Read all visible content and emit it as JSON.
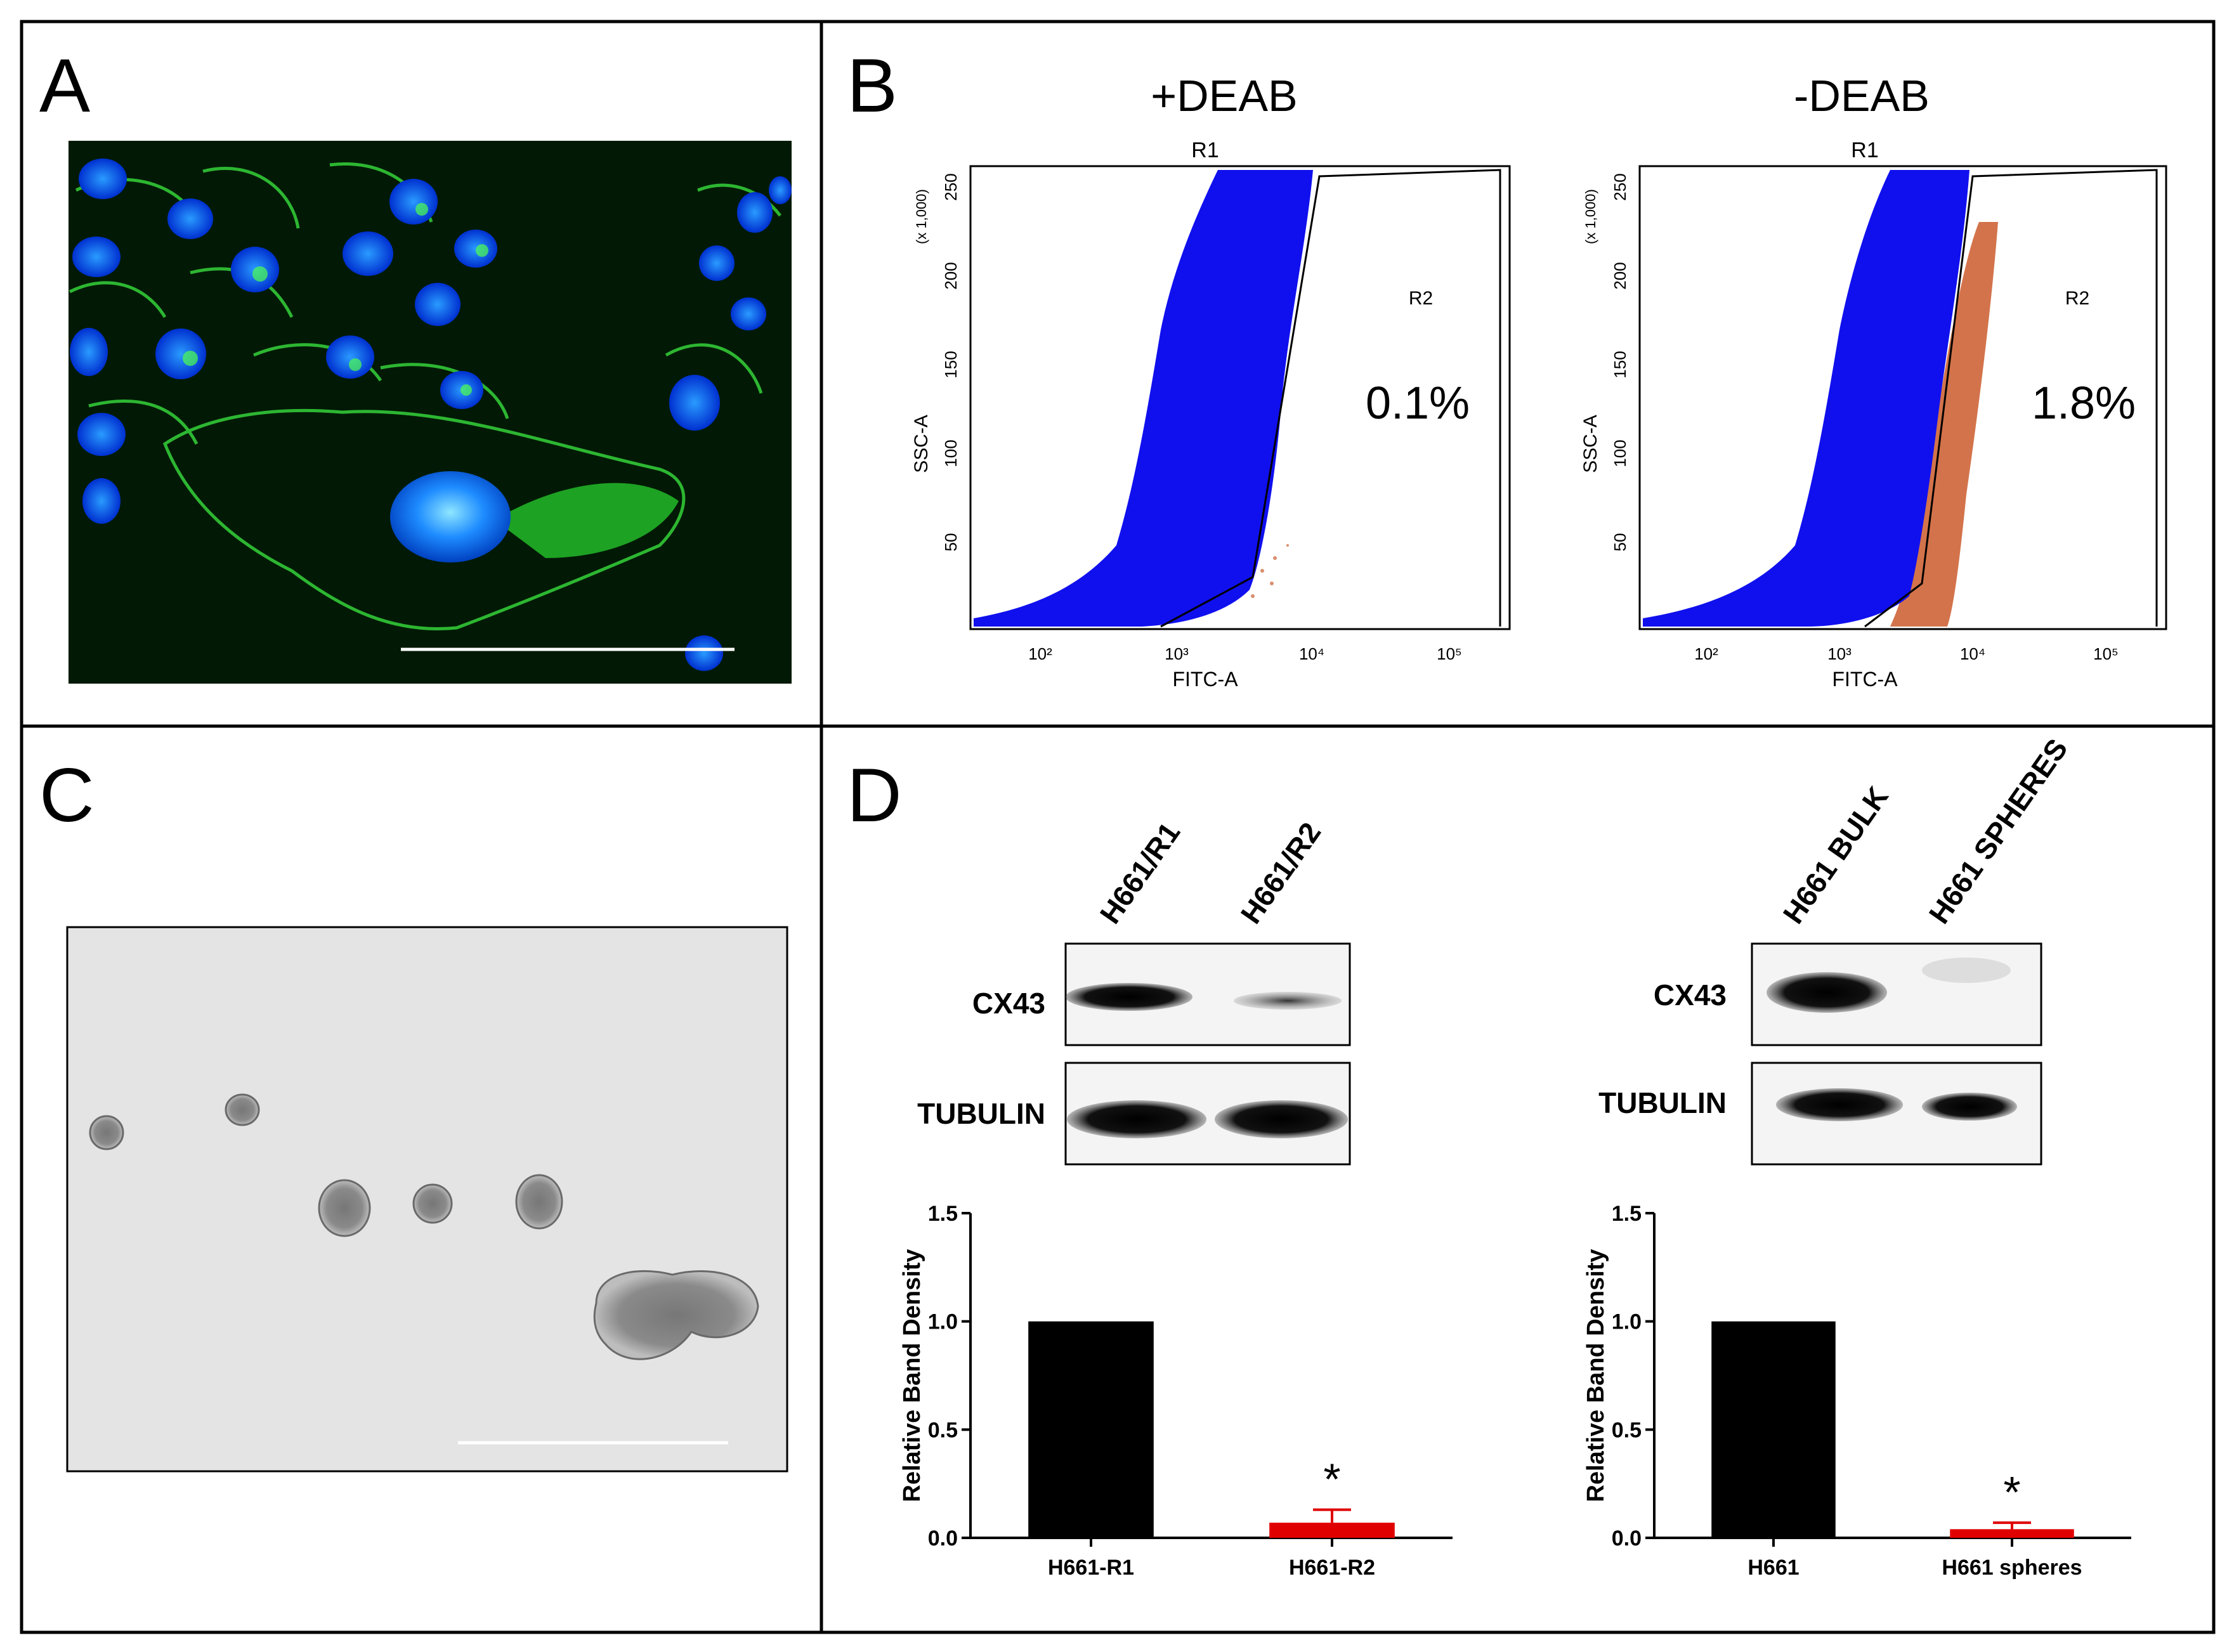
{
  "panels": {
    "a": {
      "letter": "A"
    },
    "b": {
      "letter": "B",
      "plots": [
        {
          "title": "+DEAB",
          "gate1": "R1",
          "gate2": "R2",
          "percent": "0.1%",
          "ylabel": "SSC-A",
          "xlabel": "FITC-A",
          "ymult": "(x 1,000)",
          "yticks": [
            "50",
            "100",
            "150",
            "200",
            "250"
          ],
          "xticks": [
            "10²",
            "10³",
            "10⁴",
            "10⁵"
          ]
        },
        {
          "title": "-DEAB",
          "gate1": "R1",
          "gate2": "R2",
          "percent": "1.8%",
          "ylabel": "SSC-A",
          "xlabel": "FITC-A",
          "ymult": "(x 1,000)",
          "yticks": [
            "50",
            "100",
            "150",
            "200",
            "250"
          ],
          "xticks": [
            "10²",
            "10³",
            "10⁴",
            "10⁵"
          ]
        }
      ]
    },
    "c": {
      "letter": "C"
    },
    "d": {
      "letter": "D",
      "blots": [
        {
          "lanes": [
            "H661/R1",
            "H661/R2"
          ],
          "rows": [
            "CX43",
            "TUBULIN"
          ]
        },
        {
          "lanes": [
            "H661 BULK",
            "H661 SPHERES"
          ],
          "rows": [
            "CX43",
            "TUBULIN"
          ]
        }
      ]
    }
  },
  "chart_data": [
    {
      "type": "bar",
      "categories": [
        "H661-R1",
        "H661-R2"
      ],
      "values": [
        1.0,
        0.07
      ],
      "errors": [
        0,
        0.06
      ],
      "ylabel": "Relative Band Density",
      "ylim": [
        0,
        1.5
      ],
      "yticks": [
        "0.0",
        "0.5",
        "1.0",
        "1.5"
      ],
      "colors": [
        "#000000",
        "#e00000"
      ],
      "annotations": [
        "*"
      ]
    },
    {
      "type": "bar",
      "categories": [
        "H661",
        "H661 spheres"
      ],
      "values": [
        1.0,
        0.04
      ],
      "errors": [
        0,
        0.03
      ],
      "ylabel": "Relative Band Density",
      "ylim": [
        0,
        1.5
      ],
      "yticks": [
        "0.0",
        "0.5",
        "1.0",
        "1.5"
      ],
      "colors": [
        "#000000",
        "#e00000"
      ],
      "annotations": [
        "*"
      ]
    }
  ]
}
